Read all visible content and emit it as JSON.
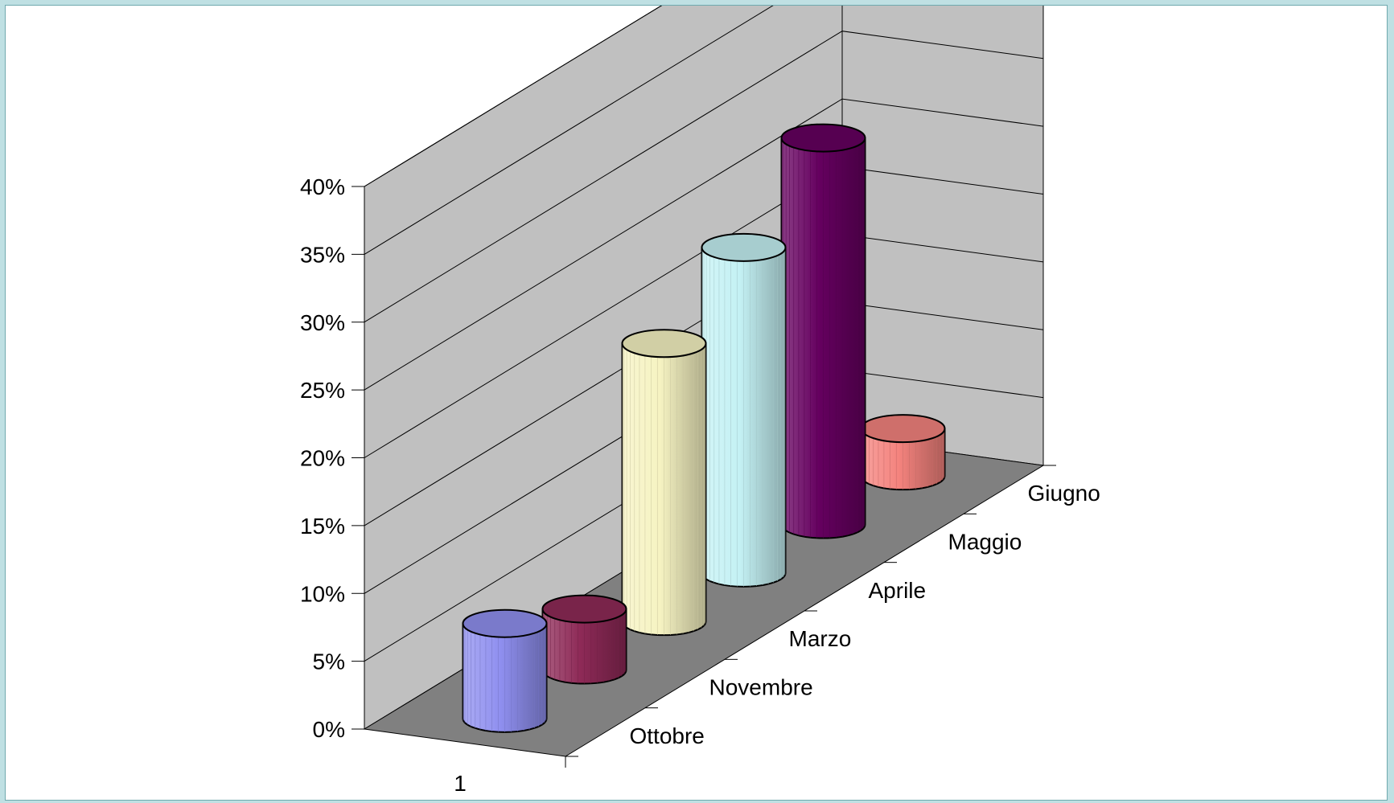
{
  "chart_data": {
    "type": "bar",
    "style": "3d-cylinder",
    "categories": [
      "1"
    ],
    "series": [
      {
        "name": "Ottobre",
        "values": [
          0.07
        ],
        "color": "#8f8fef"
      },
      {
        "name": "Novembre",
        "values": [
          0.045
        ],
        "color": "#8e2a57"
      },
      {
        "name": "Marzo",
        "values": [
          0.205
        ],
        "color": "#f6f3c2"
      },
      {
        "name": "Aprile",
        "values": [
          0.24
        ],
        "color": "#c4f1f4"
      },
      {
        "name": "Maggio",
        "values": [
          0.285
        ],
        "color": "#65005f"
      },
      {
        "name": "Giugno",
        "values": [
          0.035
        ],
        "color": "#f4837e"
      }
    ],
    "y_ticks": [
      "0%",
      "5%",
      "10%",
      "15%",
      "20%",
      "25%",
      "30%",
      "35%",
      "40%"
    ],
    "ylim": [
      0,
      0.4
    ],
    "grid": true,
    "wall_color": "#c0c0c0",
    "floor_color": "#808080"
  }
}
